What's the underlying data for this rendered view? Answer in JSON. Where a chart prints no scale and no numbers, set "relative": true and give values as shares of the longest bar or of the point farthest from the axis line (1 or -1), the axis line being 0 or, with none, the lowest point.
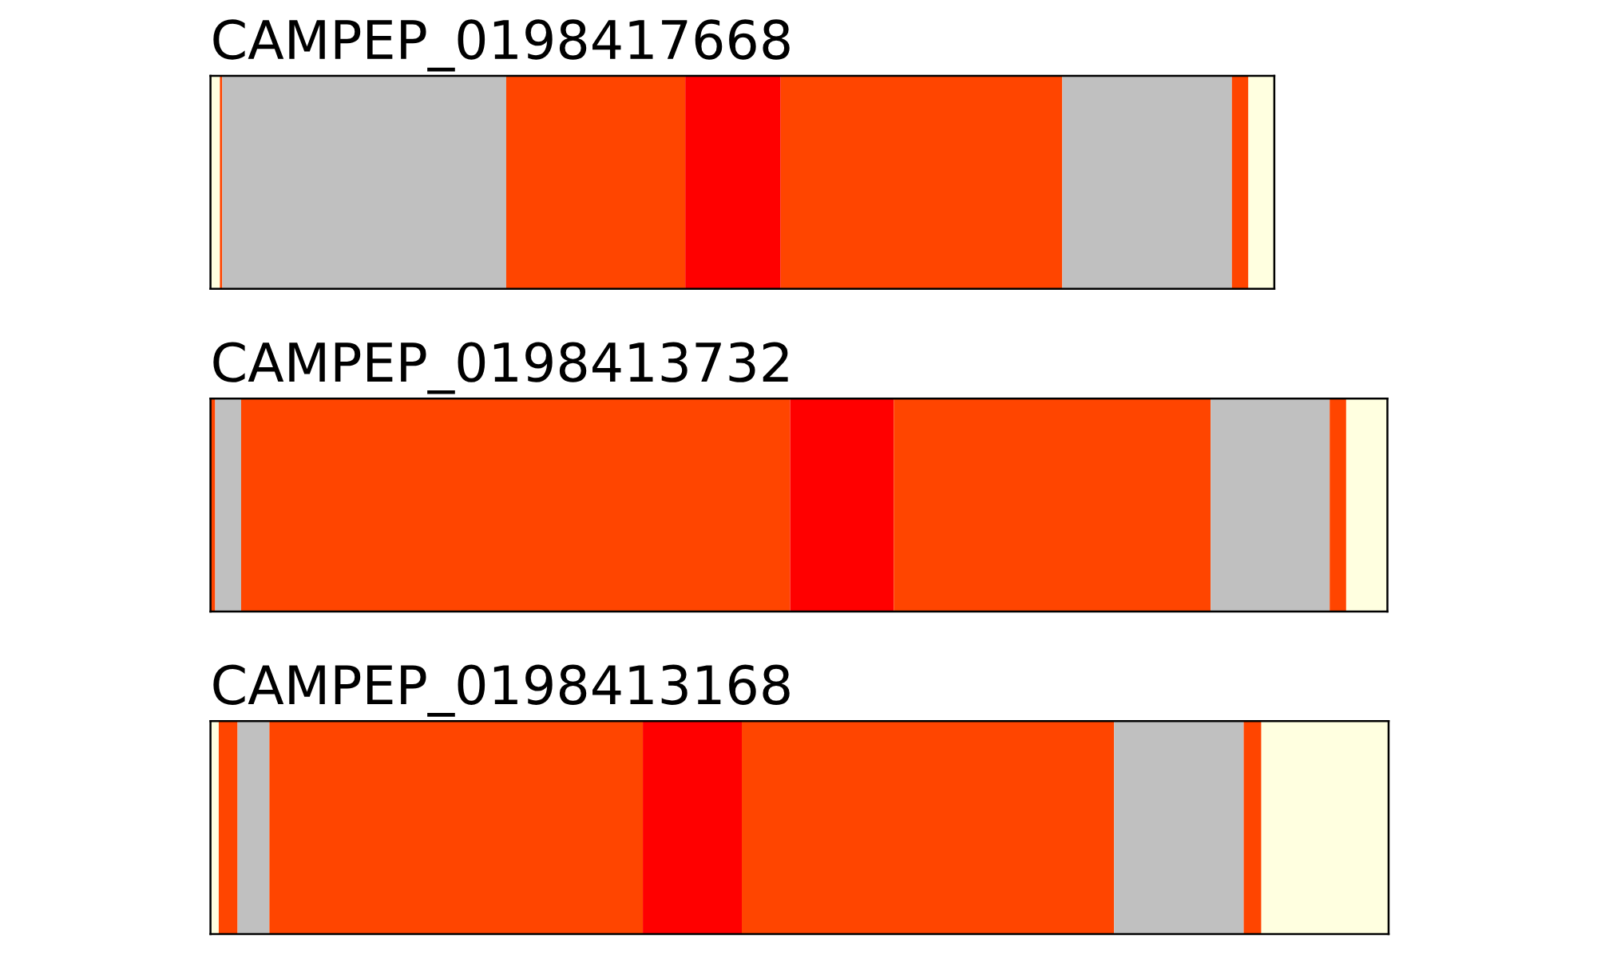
{
  "chart_data": {
    "type": "bar",
    "orientation": "horizontal",
    "stacked": true,
    "relative": true,
    "categories": [
      "CAMPEP_0198417668",
      "CAMPEP_0198413732",
      "CAMPEP_0198413168"
    ],
    "series": [
      {
        "color": "#ffffe0",
        "values": [
          0.008,
          null,
          0.007
        ]
      },
      {
        "color": "#ff4500",
        "values": [
          0.002,
          0.004,
          0.016
        ]
      },
      {
        "color": "#c0c0c0",
        "values": [
          0.241,
          0.022,
          0.027
        ]
      },
      {
        "color": "#ff4500",
        "values": [
          0.152,
          0.466,
          0.317
        ]
      },
      {
        "color": "#ff0000",
        "values": [
          0.081,
          0.088,
          0.084
        ]
      },
      {
        "color": "#ff4500",
        "values": [
          0.239,
          0.269,
          0.316
        ]
      },
      {
        "color": "#c0c0c0",
        "values": [
          0.144,
          0.101,
          0.11
        ]
      },
      {
        "color": "#ff4500",
        "values": [
          0.014,
          0.014,
          0.015
        ]
      },
      {
        "color": "#ffffe0",
        "values": [
          0.022,
          0.035,
          0.108
        ]
      }
    ]
  }
}
